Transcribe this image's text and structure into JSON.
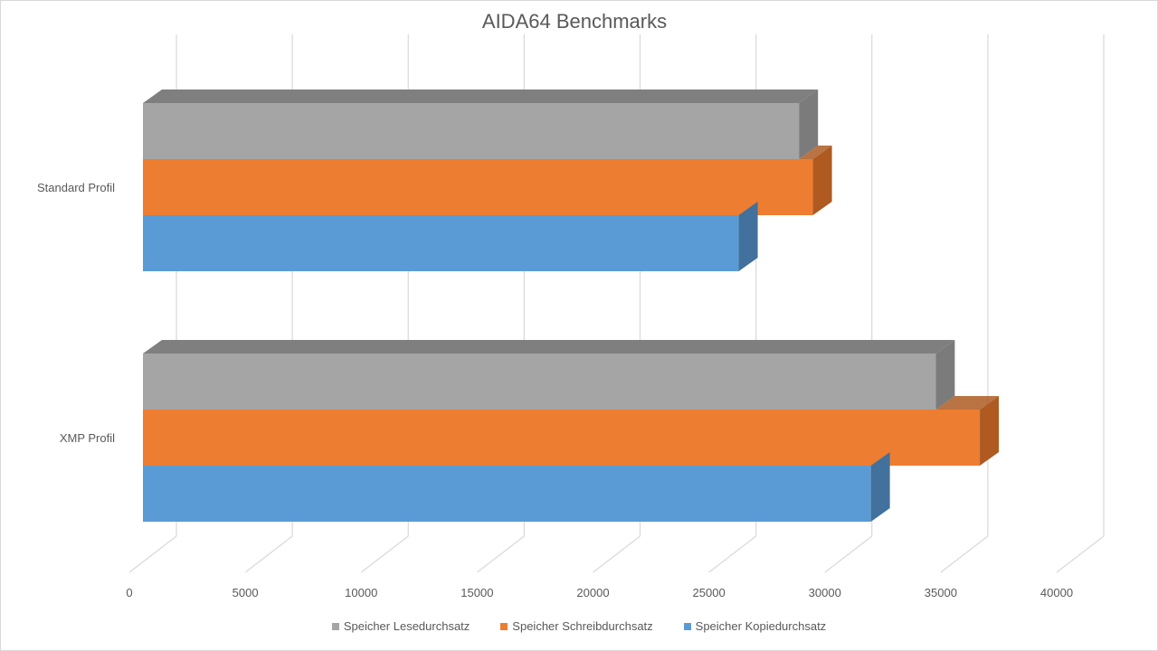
{
  "chart_data": {
    "type": "bar",
    "orientation": "horizontal",
    "style": "3d-clustered",
    "title": "AIDA64 Benchmarks",
    "categories": [
      "Standard Profil",
      "XMP Profil"
    ],
    "series": [
      {
        "name": "Speicher Lesedurchsatz",
        "color": "#a5a5a5",
        "side_color": "#7b7b7b",
        "values": [
          28300,
          34200
        ]
      },
      {
        "name": "Speicher Schreibdurchsatz",
        "color": "#ed7d31",
        "side_color": "#ae5a21",
        "values": [
          28900,
          36100
        ]
      },
      {
        "name": "Speicher Kopiedurchsatz",
        "color": "#5b9bd5",
        "side_color": "#41719c",
        "values": [
          25700,
          31400
        ]
      }
    ],
    "xlim": [
      0,
      40000
    ],
    "xticks": [
      "0",
      "5000",
      "10000",
      "15000",
      "20000",
      "25000",
      "30000",
      "35000",
      "40000"
    ],
    "grid": true,
    "legend_position": "bottom"
  }
}
